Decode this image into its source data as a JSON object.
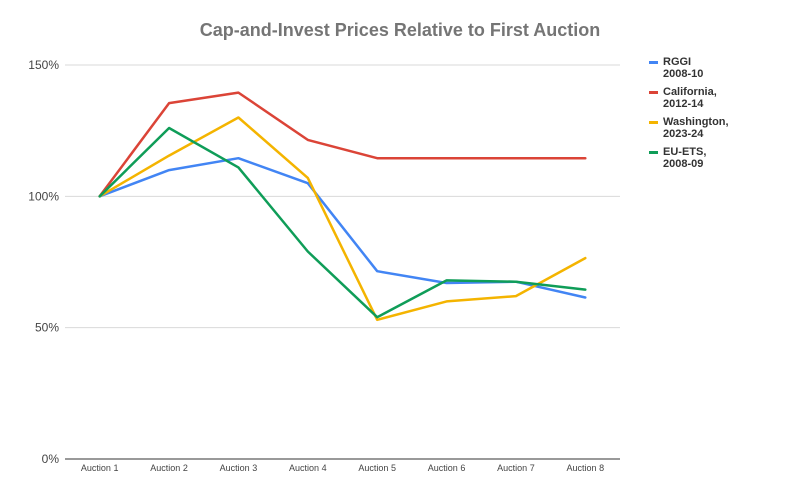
{
  "chart_data": {
    "type": "line",
    "title": "Cap-and-Invest Prices Relative to First Auction",
    "xlabel": "",
    "ylabel": "",
    "categories": [
      "Auction 1",
      "Auction 2",
      "Auction 3",
      "Auction 4",
      "Auction 5",
      "Auction 6",
      "Auction 7",
      "Auction 8"
    ],
    "ylim": [
      0,
      150
    ],
    "yticks": [
      0,
      50,
      100,
      150
    ],
    "ytick_labels": [
      "0%",
      "50%",
      "100%",
      "150%"
    ],
    "grid": "horizontal",
    "legend_position": "right",
    "series": [
      {
        "name": "RGGI 2008-10",
        "label_lines": [
          "RGGI",
          "2008-10"
        ],
        "color": "#4285F4",
        "values": [
          100,
          110,
          114.5,
          105,
          71.5,
          67,
          67.5,
          61.5
        ]
      },
      {
        "name": "California, 2012-14",
        "label_lines": [
          "California,",
          "2012-14"
        ],
        "color": "#DB4437",
        "values": [
          100,
          135.5,
          139.5,
          121.5,
          114.5,
          114.5,
          114.5,
          114.5
        ]
      },
      {
        "name": "Washington, 2023-24",
        "label_lines": [
          "Washington,",
          "2023-24"
        ],
        "color": "#F4B400",
        "values": [
          100,
          115.5,
          130,
          107,
          53,
          60,
          62,
          76.5
        ]
      },
      {
        "name": "EU-ETS, 2008-09",
        "label_lines": [
          "EU-ETS,",
          "2008-09"
        ],
        "color": "#0F9D58",
        "values": [
          100,
          126,
          111,
          79,
          54,
          68,
          67.5,
          64.5
        ]
      }
    ]
  }
}
